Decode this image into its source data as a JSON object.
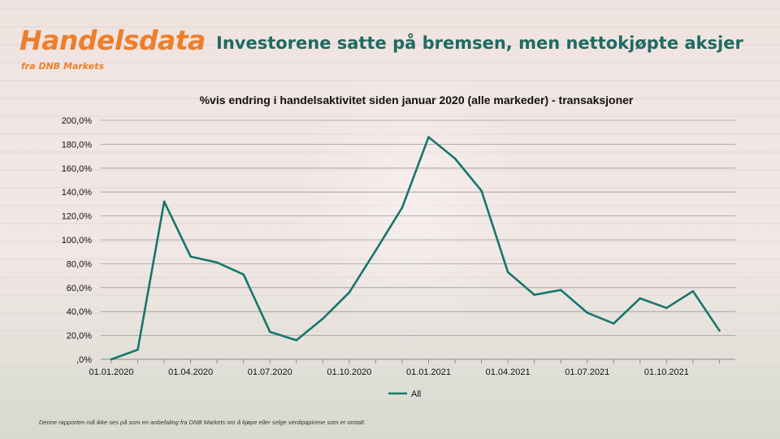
{
  "header": {
    "logo": "Handelsdata",
    "logo_sub": "fra DNB Markets",
    "headline": "Investorene satte på bremsen, men nettokjøpte aksjer"
  },
  "footer": {
    "disclaimer": "Denne rapporten må ikke ses på som en anbefaling fra DNB Markets om å kjøpe eller selge verdipapirene som er omtalt."
  },
  "colors": {
    "line": "#16766b",
    "brand": "#ee7f2a",
    "headline": "#1e6b63"
  },
  "chart_data": {
    "type": "line",
    "title": "%vis endring i handelsaktivitet siden januar 2020 (alle markeder) - transaksjoner",
    "xlabel": "",
    "ylabel": "",
    "x": [
      "2020-01",
      "2020-02",
      "2020-03",
      "2020-04",
      "2020-05",
      "2020-06",
      "2020-07",
      "2020-08",
      "2020-09",
      "2020-10",
      "2020-11",
      "2020-12",
      "2021-01",
      "2021-02",
      "2021-03",
      "2021-04",
      "2021-05",
      "2021-06",
      "2021-07",
      "2021-08",
      "2021-09",
      "2021-10",
      "2021-11",
      "2021-12"
    ],
    "x_tick_labels": [
      "01.01.2020",
      "01.04.2020",
      "01.07.2020",
      "01.10.2020",
      "01.01.2021",
      "01.04.2021",
      "01.07.2021",
      "01.10.2021"
    ],
    "y_tick_labels": [
      ",0%",
      "20,0%",
      "40,0%",
      "60,0%",
      "80,0%",
      "100,0%",
      "120,0%",
      "140,0%",
      "160,0%",
      "180,0%",
      "200,0%"
    ],
    "ylim": [
      0,
      200
    ],
    "grid": true,
    "legend_position": "bottom",
    "series": [
      {
        "name": "All",
        "values": [
          0,
          8,
          132,
          86,
          81,
          71,
          23,
          16,
          34,
          56,
          91,
          127,
          186,
          168,
          141,
          73,
          54,
          58,
          39,
          30,
          51,
          43,
          57,
          24
        ]
      }
    ]
  }
}
